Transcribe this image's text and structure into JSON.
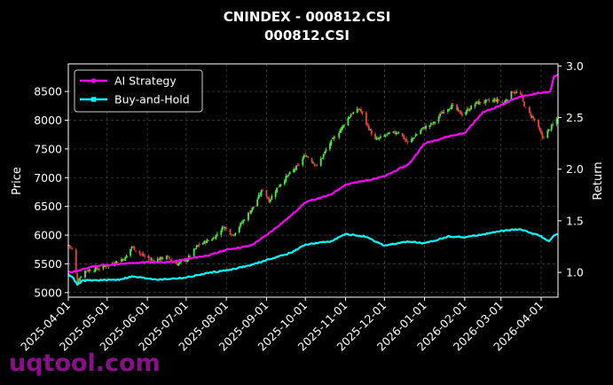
{
  "chart_data": {
    "type": "line",
    "title": "CNINDEX - 000812.CSI",
    "subtitle": "000812.CSI",
    "ylabel": "Price",
    "y2label": "Return",
    "ylim": [
      4920,
      8980
    ],
    "y2lim": [
      0.76,
      3.02
    ],
    "yticks": [
      "5000",
      "5500",
      "6000",
      "6500",
      "7000",
      "7500",
      "8000",
      "8500"
    ],
    "y2ticks": [
      "1.0",
      "1.5",
      "2.0",
      "2.5",
      "3.0"
    ],
    "xticks": [
      "2025-04-01",
      "2025-05-01",
      "2025-06-01",
      "2025-07-01",
      "2025-08-01",
      "2025-09-01",
      "2025-10-01",
      "2025-11-01",
      "2025-12-01",
      "2026-01-01",
      "2026-02-01",
      "2026-03-01",
      "2026-04-01"
    ],
    "xrange": [
      "2025-04-01",
      "2026-04-14"
    ],
    "grid": true,
    "legend_position": "top-left",
    "price_anchors": [
      [
        "2025-04-01",
        5830
      ],
      [
        "2025-04-04",
        5750
      ],
      [
        "2025-04-08",
        5200
      ],
      [
        "2025-04-14",
        5380
      ],
      [
        "2025-04-25",
        5420
      ],
      [
        "2025-05-06",
        5520
      ],
      [
        "2025-05-15",
        5600
      ],
      [
        "2025-05-20",
        5800
      ],
      [
        "2025-05-28",
        5650
      ],
      [
        "2025-06-05",
        5560
      ],
      [
        "2025-06-16",
        5620
      ],
      [
        "2025-06-24",
        5500
      ],
      [
        "2025-07-01",
        5560
      ],
      [
        "2025-07-10",
        5820
      ],
      [
        "2025-07-22",
        5950
      ],
      [
        "2025-07-30",
        6150
      ],
      [
        "2025-08-06",
        6000
      ],
      [
        "2025-08-14",
        6250
      ],
      [
        "2025-08-22",
        6500
      ],
      [
        "2025-08-29",
        6800
      ],
      [
        "2025-09-03",
        6600
      ],
      [
        "2025-09-10",
        6850
      ],
      [
        "2025-09-18",
        7050
      ],
      [
        "2025-09-25",
        7200
      ],
      [
        "2025-10-01",
        7400
      ],
      [
        "2025-10-10",
        7200
      ],
      [
        "2025-10-20",
        7600
      ],
      [
        "2025-10-27",
        7800
      ],
      [
        "2025-11-05",
        8100
      ],
      [
        "2025-11-12",
        8200
      ],
      [
        "2025-11-18",
        7900
      ],
      [
        "2025-11-24",
        7650
      ],
      [
        "2025-12-03",
        7750
      ],
      [
        "2025-12-12",
        7800
      ],
      [
        "2025-12-19",
        7600
      ],
      [
        "2025-12-30",
        7850
      ],
      [
        "2026-01-08",
        7950
      ],
      [
        "2026-01-15",
        8150
      ],
      [
        "2026-01-22",
        8250
      ],
      [
        "2026-01-30",
        8100
      ],
      [
        "2026-02-10",
        8300
      ],
      [
        "2026-02-25",
        8350
      ],
      [
        "2026-03-03",
        8300
      ],
      [
        "2026-03-10",
        8500
      ],
      [
        "2026-03-16",
        8450
      ],
      [
        "2026-03-20",
        8200
      ],
      [
        "2026-03-27",
        8000
      ],
      [
        "2026-04-02",
        7700
      ],
      [
        "2026-04-08",
        7850
      ],
      [
        "2026-04-14",
        8050
      ]
    ],
    "series": [
      {
        "name": "AI Strategy",
        "color": "#ff00ff",
        "points": [
          [
            "2025-04-01",
            1.0
          ],
          [
            "2025-04-10",
            1.02
          ],
          [
            "2025-04-20",
            1.06
          ],
          [
            "2025-05-10",
            1.08
          ],
          [
            "2025-06-01",
            1.1
          ],
          [
            "2025-06-20",
            1.1
          ],
          [
            "2025-07-01",
            1.13
          ],
          [
            "2025-07-20",
            1.17
          ],
          [
            "2025-08-01",
            1.22
          ],
          [
            "2025-08-20",
            1.26
          ],
          [
            "2025-09-01",
            1.36
          ],
          [
            "2025-09-20",
            1.55
          ],
          [
            "2025-10-01",
            1.68
          ],
          [
            "2025-10-20",
            1.75
          ],
          [
            "2025-11-01",
            1.85
          ],
          [
            "2025-11-20",
            1.9
          ],
          [
            "2025-12-01",
            1.93
          ],
          [
            "2025-12-20",
            2.05
          ],
          [
            "2026-01-01",
            2.25
          ],
          [
            "2026-01-20",
            2.32
          ],
          [
            "2026-02-01",
            2.35
          ],
          [
            "2026-02-15",
            2.55
          ],
          [
            "2026-03-01",
            2.62
          ],
          [
            "2026-03-15",
            2.7
          ],
          [
            "2026-04-01",
            2.74
          ],
          [
            "2026-04-08",
            2.75
          ],
          [
            "2026-04-11",
            2.9
          ],
          [
            "2026-04-14",
            2.91
          ]
        ]
      },
      {
        "name": "Buy-and-Hold",
        "color": "#00ffff",
        "points": [
          [
            "2025-04-01",
            0.98
          ],
          [
            "2025-04-04",
            0.96
          ],
          [
            "2025-04-08",
            0.88
          ],
          [
            "2025-04-12",
            0.92
          ],
          [
            "2025-05-10",
            0.93
          ],
          [
            "2025-05-20",
            0.96
          ],
          [
            "2025-06-10",
            0.93
          ],
          [
            "2025-07-01",
            0.95
          ],
          [
            "2025-07-20",
            1.0
          ],
          [
            "2025-08-01",
            1.02
          ],
          [
            "2025-08-20",
            1.07
          ],
          [
            "2025-09-01",
            1.12
          ],
          [
            "2025-09-20",
            1.19
          ],
          [
            "2025-10-01",
            1.27
          ],
          [
            "2025-10-20",
            1.3
          ],
          [
            "2025-11-01",
            1.37
          ],
          [
            "2025-11-15",
            1.35
          ],
          [
            "2025-12-01",
            1.26
          ],
          [
            "2025-12-20",
            1.3
          ],
          [
            "2026-01-01",
            1.28
          ],
          [
            "2026-01-20",
            1.35
          ],
          [
            "2026-02-01",
            1.34
          ],
          [
            "2026-02-20",
            1.38
          ],
          [
            "2026-03-01",
            1.4
          ],
          [
            "2026-03-15",
            1.42
          ],
          [
            "2026-03-25",
            1.38
          ],
          [
            "2026-04-01",
            1.35
          ],
          [
            "2026-04-07",
            1.3
          ],
          [
            "2026-04-11",
            1.36
          ],
          [
            "2026-04-14",
            1.37
          ]
        ]
      }
    ],
    "candle_up_color": "#4cf040",
    "candle_down_color": "#f04040"
  },
  "watermark": "uqtool.com"
}
